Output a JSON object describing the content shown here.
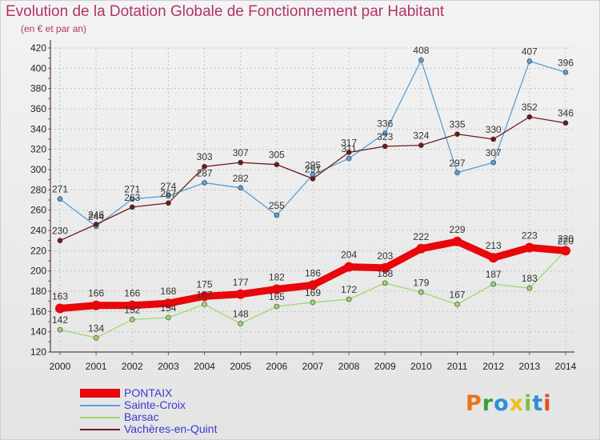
{
  "title": "Evolution de la Dotation Globale de Fonctionnement par Habitant",
  "subtitle": "(en € et par an)",
  "brand": {
    "text": "Proxiti",
    "colors": [
      "#e8731a",
      "#3aa03a",
      "#2b8fd6",
      "#e8c21a",
      "#7bbf3a",
      "#2b8fd6",
      "#e84a1a"
    ]
  },
  "chart_data": {
    "type": "line",
    "title": "Evolution de la Dotation Globale de Fonctionnement par Habitant",
    "subtitle": "(en € et par an)",
    "xlabel": "",
    "ylabel": "",
    "x": [
      "2000",
      "2001",
      "2002",
      "2003",
      "2004",
      "2005",
      "2006",
      "2007",
      "2008",
      "2009",
      "2010",
      "2011",
      "2012",
      "2013",
      "2014"
    ],
    "ylim": [
      120,
      420
    ],
    "yticks": [
      120,
      140,
      160,
      180,
      200,
      220,
      240,
      260,
      280,
      300,
      320,
      340,
      360,
      380,
      400,
      420
    ],
    "grid": true,
    "legend_position": "bottom-left",
    "series": [
      {
        "name": "PONTAIX",
        "color": "#e8070b",
        "emphasis": true,
        "values": [
          163,
          166,
          166,
          168,
          175,
          177,
          182,
          186,
          204,
          203,
          222,
          229,
          213,
          223,
          220
        ]
      },
      {
        "name": "Sainte-Croix",
        "color": "#5a9fd4",
        "values": [
          271,
          244,
          271,
          274,
          287,
          282,
          255,
          295,
          311,
          336,
          408,
          297,
          307,
          407,
          396
        ]
      },
      {
        "name": "Barsac",
        "color": "#9ed86e",
        "values": [
          142,
          134,
          152,
          154,
          167,
          148,
          165,
          169,
          172,
          188,
          179,
          167,
          187,
          183,
          220
        ]
      },
      {
        "name": "Vachères-en-Quint",
        "color": "#6e1a1a",
        "values": [
          230,
          246,
          263,
          267,
          303,
          307,
          305,
          291,
          317,
          323,
          324,
          335,
          330,
          352,
          346
        ]
      }
    ]
  }
}
